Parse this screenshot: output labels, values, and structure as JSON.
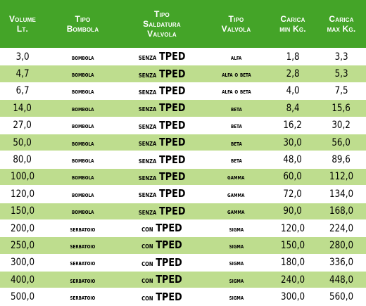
{
  "headers": {
    "volume": [
      "Volume",
      "Lt."
    ],
    "tipo_bombola": [
      "Tipo",
      "Bombola"
    ],
    "tipo_saldatura": [
      "Tipo",
      "Saldatura",
      "Valvola"
    ],
    "tipo_valvola": [
      "Tipo",
      "Valvola"
    ],
    "carica_min": [
      "Carica",
      "min Kg."
    ],
    "carica_max": [
      "Carica",
      "max Kg."
    ]
  },
  "rows": [
    {
      "volume": "3,0",
      "tipo": "BOMBOLA",
      "saldatura_word": "SENZA",
      "saldatura_code": "TPED",
      "valvola": "ALFA",
      "min": "1,8",
      "max": "3,3"
    },
    {
      "volume": "4,7",
      "tipo": "BOMBOLA",
      "saldatura_word": "SENZA",
      "saldatura_code": "TPED",
      "valvola": "ALFA O BETA",
      "min": "2,8",
      "max": "5,3"
    },
    {
      "volume": "6,7",
      "tipo": "BOMBOLA",
      "saldatura_word": "SENZA",
      "saldatura_code": "TPED",
      "valvola": "ALFA O BETA",
      "min": "4,0",
      "max": "7,5"
    },
    {
      "volume": "14,0",
      "tipo": "BOMBOLA",
      "saldatura_word": "SENZA",
      "saldatura_code": "TPED",
      "valvola": "BETA",
      "min": "8,4",
      "max": "15,6"
    },
    {
      "volume": "27,0",
      "tipo": "BOMBOLA",
      "saldatura_word": "SENZA",
      "saldatura_code": "TPED",
      "valvola": "BETA",
      "min": "16,2",
      "max": "30,2"
    },
    {
      "volume": "50,0",
      "tipo": "BOMBOLA",
      "saldatura_word": "SENZA",
      "saldatura_code": "TPED",
      "valvola": "BETA",
      "min": "30,0",
      "max": "56,0"
    },
    {
      "volume": "80,0",
      "tipo": "BOMBOLA",
      "saldatura_word": "SENZA",
      "saldatura_code": "TPED",
      "valvola": "BETA",
      "min": "48,0",
      "max": "89,6"
    },
    {
      "volume": "100,0",
      "tipo": "BOMBOLA",
      "saldatura_word": "SENZA",
      "saldatura_code": "TPED",
      "valvola": "GAMMA",
      "min": "60,0",
      "max": "112,0"
    },
    {
      "volume": "120,0",
      "tipo": "BOMBOLA",
      "saldatura_word": "SENZA",
      "saldatura_code": "TPED",
      "valvola": "GAMMA",
      "min": "72,0",
      "max": "134,0"
    },
    {
      "volume": "150,0",
      "tipo": "BOMBOLA",
      "saldatura_word": "SENZA",
      "saldatura_code": "TPED",
      "valvola": "GAMMA",
      "min": "90,0",
      "max": "168,0"
    },
    {
      "volume": "200,0",
      "tipo": "SERBATOIO",
      "saldatura_word": "CON",
      "saldatura_code": "TPED",
      "valvola": "SIGMA",
      "min": "120,0",
      "max": "224,0"
    },
    {
      "volume": "250,0",
      "tipo": "SERBATOIO",
      "saldatura_word": "CON",
      "saldatura_code": "TPED",
      "valvola": "SIGMA",
      "min": "150,0",
      "max": "280,0"
    },
    {
      "volume": "300,0",
      "tipo": "SERBATOIO",
      "saldatura_word": "CON",
      "saldatura_code": "TPED",
      "valvola": "SIGMA",
      "min": "180,0",
      "max": "336,0"
    },
    {
      "volume": "400,0",
      "tipo": "SERBATOIO",
      "saldatura_word": "CON",
      "saldatura_code": "TPED",
      "valvola": "SIGMA",
      "min": "240,0",
      "max": "448,0"
    },
    {
      "volume": "500,0",
      "tipo": "SERBATOIO",
      "saldatura_word": "CON",
      "saldatura_code": "TPED",
      "valvola": "SIGMA",
      "min": "300,0",
      "max": "560,0"
    }
  ]
}
